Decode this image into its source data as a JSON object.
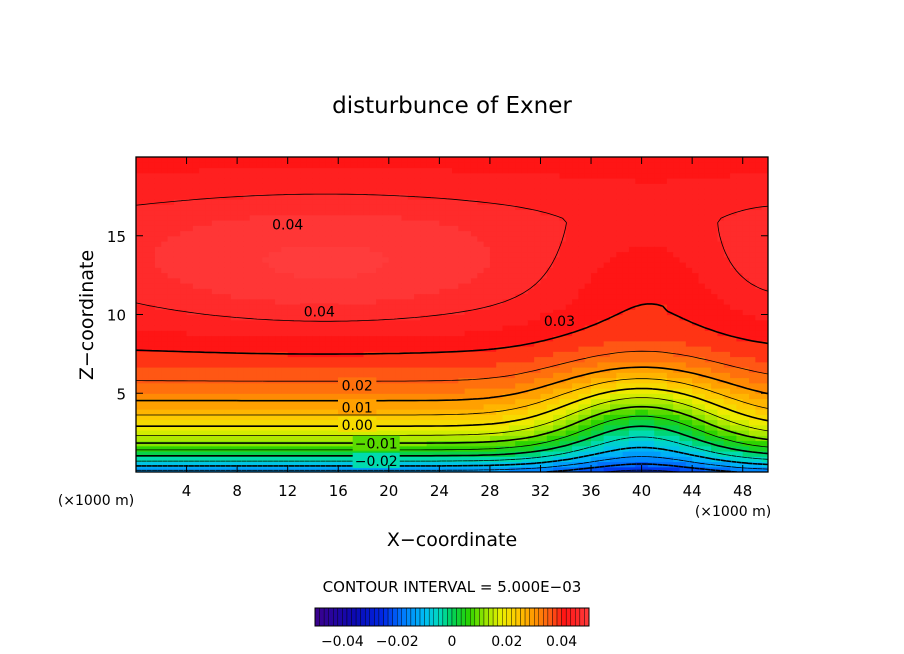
{
  "chart_data": {
    "type": "heatmap",
    "title": "disturbunce of Exner",
    "xlabel": "X−coordinate",
    "ylabel": "Z−coordinate",
    "x_unit": "(×1000 m)",
    "y_unit": "(×1000 m)",
    "xlim": [
      0,
      50
    ],
    "ylim": [
      0,
      20
    ],
    "x_ticks": [
      4,
      8,
      12,
      16,
      20,
      24,
      28,
      32,
      36,
      40,
      44,
      48
    ],
    "y_ticks": [
      5,
      10,
      15
    ],
    "contour_interval_text": "CONTOUR INTERVAL = 5.000E−03",
    "contour_labels": [
      {
        "text": "0.04",
        "x": 12,
        "z": 15.7
      },
      {
        "text": "0.04",
        "x": 14.5,
        "z": 10.2
      },
      {
        "text": "0.03",
        "x": 33.5,
        "z": 9.6
      },
      {
        "text": "0.02",
        "x": 17.5,
        "z": 5.5
      },
      {
        "text": "0.01",
        "x": 17.5,
        "z": 4.1
      },
      {
        "text": "0.00",
        "x": 17.5,
        "z": 3.0
      },
      {
        "text": "−0.01",
        "x": 19,
        "z": 1.8
      },
      {
        "text": "−0.02",
        "x": 19,
        "z": 0.7
      }
    ],
    "colorbar": {
      "min": -0.05,
      "max": 0.05,
      "tick_values": [
        -0.04,
        -0.02,
        0,
        0.02,
        0.04
      ],
      "tick_labels": [
        "−0.04",
        "−0.02",
        "0",
        "0.02",
        "0.04"
      ]
    },
    "value_range": [
      -0.025,
      0.045
    ]
  }
}
